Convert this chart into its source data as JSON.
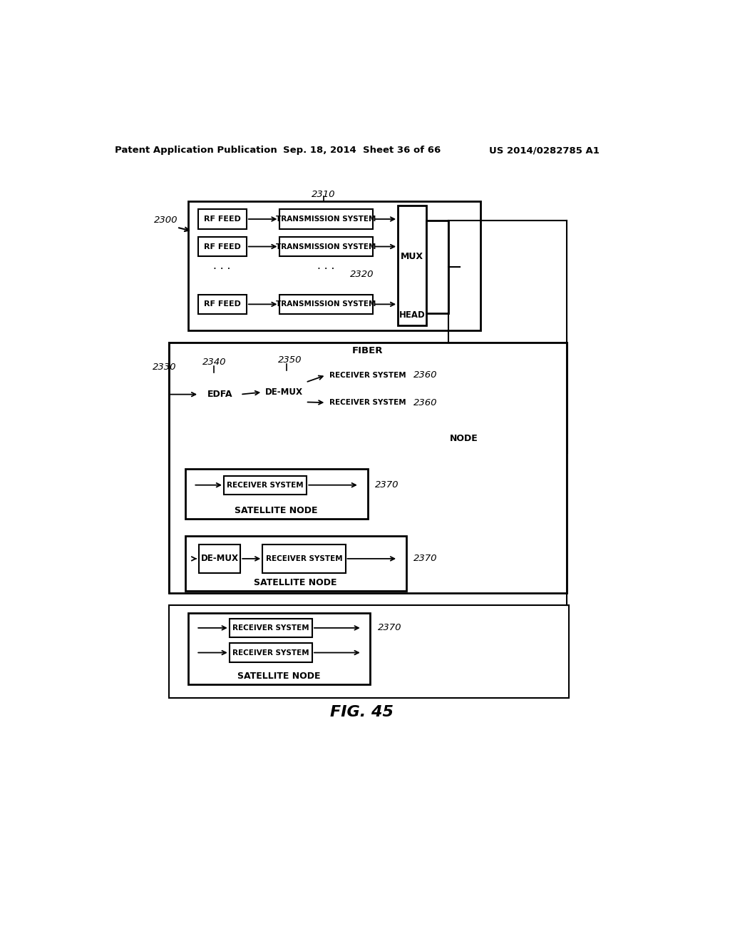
{
  "bg_color": "#ffffff",
  "header_left": "Patent Application Publication",
  "header_mid": "Sep. 18, 2014  Sheet 36 of 66",
  "header_right": "US 2014/0282785 A1",
  "fig_label": "FIG. 45"
}
